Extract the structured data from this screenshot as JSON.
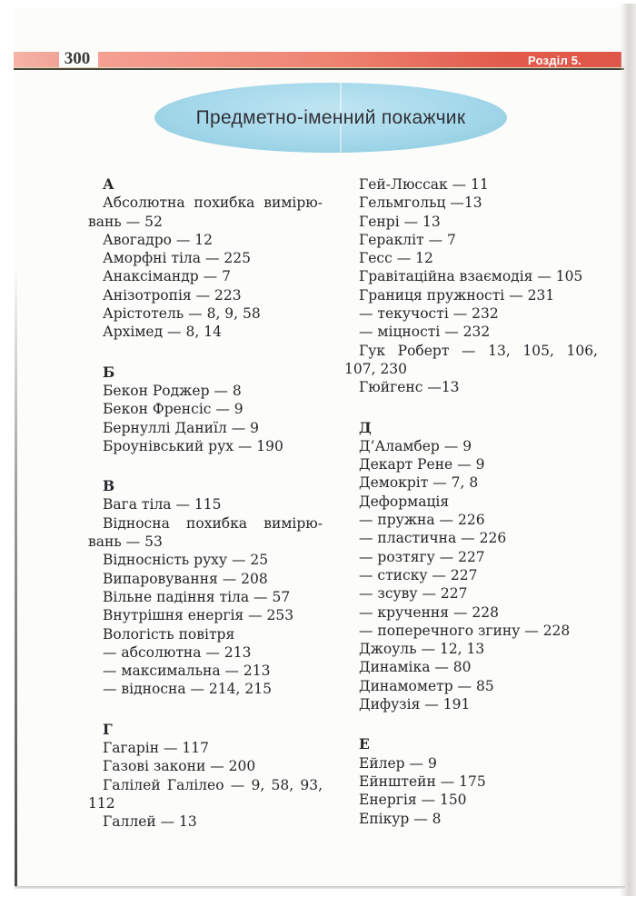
{
  "header": {
    "page_number": "300",
    "chapter_label": "Розділ 5."
  },
  "title": "Предметно-іменний покажчик",
  "index": {
    "left": [
      {
        "kind": "letter",
        "text": "А"
      },
      {
        "kind": "wrap",
        "text": "Абсолютна похибка вимірю-"
      },
      {
        "kind": "cont",
        "text": "вань — 52"
      },
      {
        "kind": "entry",
        "text": "Авогадро — 12"
      },
      {
        "kind": "entry",
        "text": "Аморфні тіла — 225"
      },
      {
        "kind": "entry",
        "text": "Анаксімандр — 7"
      },
      {
        "kind": "entry",
        "text": "Анізотропія — 223"
      },
      {
        "kind": "entry",
        "text": "Арістотель — 8, 9, 58"
      },
      {
        "kind": "entry",
        "text": "Архімед — 8, 14"
      },
      {
        "kind": "letter",
        "text": "Б"
      },
      {
        "kind": "entry",
        "text": "Бекон Роджер — 8"
      },
      {
        "kind": "entry",
        "text": "Бекон Френсіс — 9"
      },
      {
        "kind": "entry",
        "text": "Бернуллі Даниїл — 9"
      },
      {
        "kind": "entry",
        "text": "Броунівський рух — 190"
      },
      {
        "kind": "letter",
        "text": "В"
      },
      {
        "kind": "entry",
        "text": "Вага тіла — 115"
      },
      {
        "kind": "wrap",
        "text": "Відносна похибка вимірю-"
      },
      {
        "kind": "cont",
        "text": "вань — 53"
      },
      {
        "kind": "entry",
        "text": "Відносність руху — 25"
      },
      {
        "kind": "entry",
        "text": "Випаровування — 208"
      },
      {
        "kind": "entry",
        "text": "Вільне падіння тіла — 57"
      },
      {
        "kind": "entry",
        "text": "Внутрішня енергія — 253"
      },
      {
        "kind": "entry",
        "text": "Вологість повітря"
      },
      {
        "kind": "entry",
        "text": "— абсолютна — 213"
      },
      {
        "kind": "entry",
        "text": "— максимальна — 213"
      },
      {
        "kind": "entry",
        "text": "— відносна — 214, 215"
      },
      {
        "kind": "letter",
        "text": "Г"
      },
      {
        "kind": "entry",
        "text": "Гагарін — 117"
      },
      {
        "kind": "entry",
        "text": "Газові закони — 200"
      },
      {
        "kind": "wrap",
        "text": "Галілей Галілео — 9, 58, 93,"
      },
      {
        "kind": "cont",
        "text": "112"
      },
      {
        "kind": "entry",
        "text": "Галлей — 13"
      }
    ],
    "right": [
      {
        "kind": "entry",
        "text": "Гей-Люссак — 11"
      },
      {
        "kind": "entry",
        "text": "Гельмгольц —13"
      },
      {
        "kind": "entry",
        "text": "Генрі — 13"
      },
      {
        "kind": "entry",
        "text": "Геракліт — 7"
      },
      {
        "kind": "entry",
        "text": "Гесс — 12"
      },
      {
        "kind": "entry",
        "text": "Гравітаційна взаємодія — 105"
      },
      {
        "kind": "entry",
        "text": "Границя пружності — 231"
      },
      {
        "kind": "entry",
        "text": "— текучості — 232"
      },
      {
        "kind": "entry",
        "text": "— міцності — 232"
      },
      {
        "kind": "wrap",
        "text": "Гук Роберт — 13, 105, 106,"
      },
      {
        "kind": "cont",
        "text": "107, 230"
      },
      {
        "kind": "entry",
        "text": "Гюйгенс —13"
      },
      {
        "kind": "letter",
        "text": "Д"
      },
      {
        "kind": "entry",
        "text": "Д’Аламбер — 9"
      },
      {
        "kind": "entry",
        "text": "Декарт Рене — 9"
      },
      {
        "kind": "entry",
        "text": "Демокріт — 7, 8"
      },
      {
        "kind": "entry",
        "text": "Деформація"
      },
      {
        "kind": "entry",
        "text": "— пружна — 226"
      },
      {
        "kind": "entry",
        "text": "— пластична — 226"
      },
      {
        "kind": "entry",
        "text": "— розтягу — 227"
      },
      {
        "kind": "entry",
        "text": "— стиску — 227"
      },
      {
        "kind": "entry",
        "text": "— зсуву — 227"
      },
      {
        "kind": "entry",
        "text": "— кручення — 228"
      },
      {
        "kind": "entry",
        "text": "— поперечного згину — 228"
      },
      {
        "kind": "entry",
        "text": "Джоуль — 12, 13"
      },
      {
        "kind": "entry",
        "text": "Динаміка — 80"
      },
      {
        "kind": "entry",
        "text": "Динамометр — 85"
      },
      {
        "kind": "entry",
        "text": "Дифузія — 191"
      },
      {
        "kind": "letter",
        "text": "Е"
      },
      {
        "kind": "entry",
        "text": "Ейлер — 9"
      },
      {
        "kind": "entry",
        "text": "Ейнштейн — 175"
      },
      {
        "kind": "entry",
        "text": "Енергія — 150"
      },
      {
        "kind": "entry",
        "text": "Епікур — 8"
      }
    ]
  },
  "colors": {
    "bar_gradient_start": "#f5a093",
    "bar_gradient_end": "#e25b4c",
    "badge_red": "#de5749",
    "rule_dark": "#46443b",
    "oval_blue": "#a8daec",
    "text": "#26262b"
  }
}
